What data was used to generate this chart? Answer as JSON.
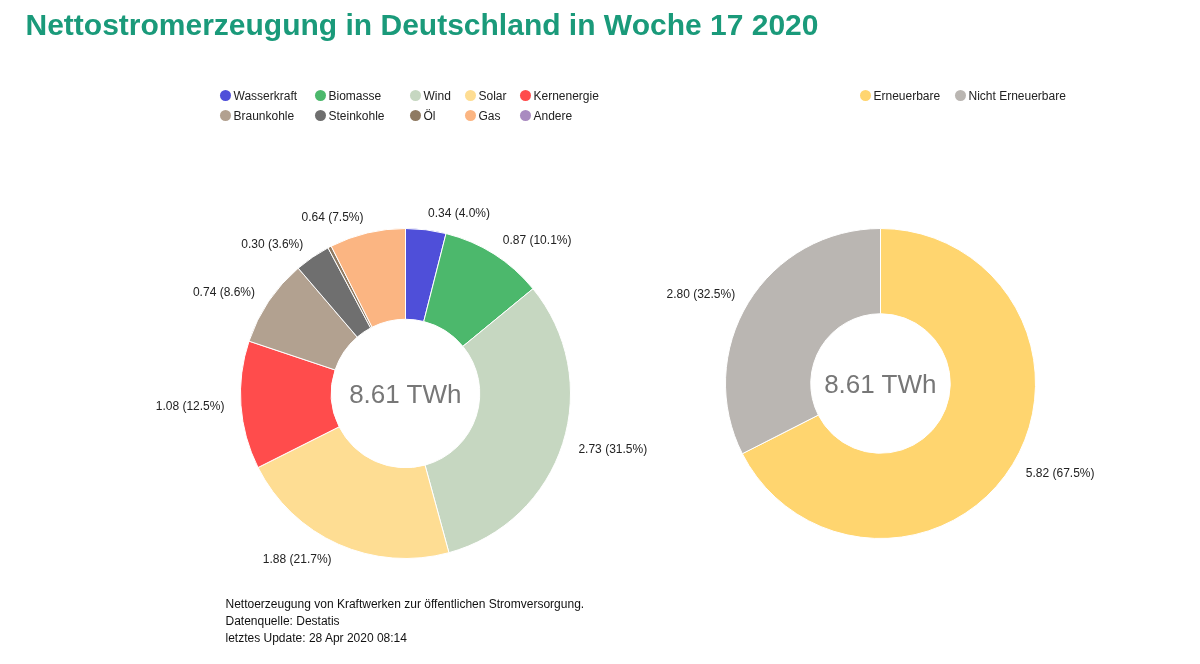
{
  "chart_data": [
    {
      "type": "donut",
      "title": "Nettostromerzeugung in Deutschland in Woche 17 2020",
      "categories": [
        "Wasserkraft",
        "Biomasse",
        "Wind",
        "Solar",
        "Kernenergie",
        "Braunkohle",
        "Steinkohle",
        "Öl",
        "Gas",
        "Andere"
      ],
      "values": [
        0.34,
        0.87,
        2.73,
        1.88,
        1.08,
        0.74,
        0.3,
        0.03,
        0.64,
        null
      ],
      "colors": [
        "#4f4fd9",
        "#4cb86c",
        "#c6d7c1",
        "#fedd93",
        "#ff4c4c",
        "#b2a190",
        "#6f6f6f",
        "#8f7a62",
        "#fbb582",
        "#a98bc0"
      ],
      "value_labels": [
        "0.34 (4.0%)",
        "0.87 (10.1%)",
        "2.73 (31.5%)",
        "1.88 (21.7%)",
        "1.08 (12.5%)",
        "0.74 (8.6%)",
        "0.30 (3.6%)",
        null,
        "0.64 (7.5%)",
        null
      ],
      "legend": "top",
      "annotations": [
        "8.61 TWh",
        "Nettoerzeugung von Kraftwerken zur öffentlichen Stromversorgung.",
        "Datenquelle: Destatis",
        "letztes Update: 28 Apr 2020 08:14"
      ]
    },
    {
      "type": "donut",
      "categories": [
        "Erneuerbare",
        "Nicht Erneuerbare"
      ],
      "values": [
        5.82,
        2.8
      ],
      "colors": [
        "#ffd56f",
        "#bab6b2"
      ],
      "value_labels": [
        "5.82 (67.5%)",
        "2.80 (32.5%)"
      ],
      "legend": "top",
      "annotations": [
        "8.61 TWh"
      ]
    }
  ]
}
